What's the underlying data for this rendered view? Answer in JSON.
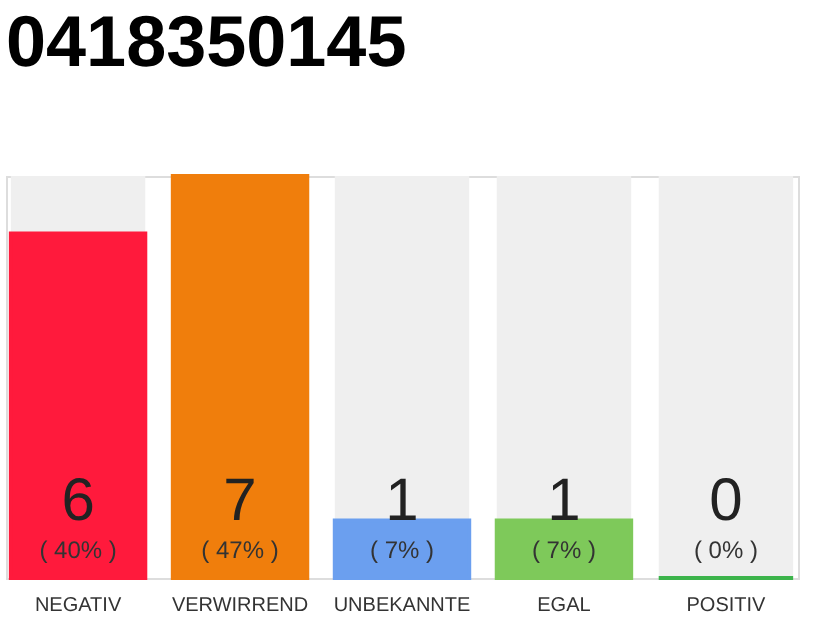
{
  "chart_data": {
    "type": "bar",
    "title": "0418350145",
    "categories": [
      "NEGATIV",
      "VERWIRREND",
      "UNBEKANNTE",
      "EGAL",
      "POSITIV"
    ],
    "values": [
      6,
      7,
      1,
      1,
      0
    ],
    "colors": [
      "#ff1a3c",
      "#f07e0c",
      "#6b9fef",
      "#7ec95a",
      "#3cb44b"
    ],
    "ylim": [
      0,
      7
    ],
    "tick_labels": "x",
    "grid": false,
    "data_labels": true,
    "annotations": [
      "( 40% )",
      "( 47% )",
      "( 7% )",
      "( 7% )",
      "( 0% )"
    ]
  }
}
